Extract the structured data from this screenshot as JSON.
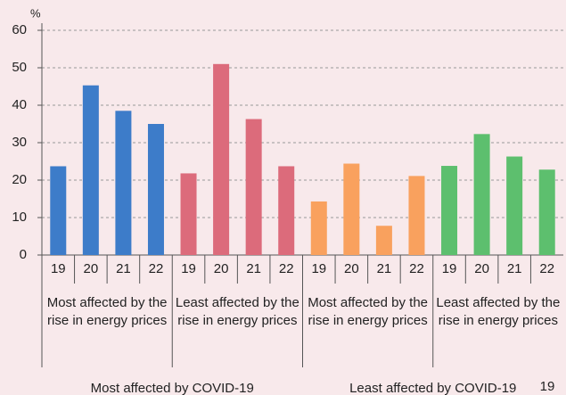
{
  "chart_data": {
    "type": "bar",
    "y_unit": "%",
    "categories": [
      "19",
      "20",
      "21",
      "22"
    ],
    "series": [
      {
        "name": "Most affected by the rise in energy prices",
        "color": "#3d7cc9",
        "values": [
          23.7,
          45.3,
          38.5,
          35
        ]
      },
      {
        "name": "Least affected by the rise in energy prices",
        "color": "#dc6b7b",
        "values": [
          21.8,
          51,
          36.3,
          23.7
        ]
      },
      {
        "name": "Most affected by the rise in energy prices",
        "color": "#f9a15e",
        "values": [
          14.3,
          24.4,
          7.8,
          21.1
        ]
      },
      {
        "name": "Least affected by the rise in energy prices",
        "color": "#5dbf6e",
        "values": [
          23.8,
          32.3,
          26.3,
          22.8
        ]
      }
    ],
    "supergroups": [
      "Most affected by COVID-19",
      "Least affected by COVID-19"
    ],
    "ylim": [
      0,
      60
    ],
    "yticks": [
      0,
      10,
      20,
      30,
      40,
      50,
      60
    ],
    "grid": true,
    "page_number": "19"
  }
}
